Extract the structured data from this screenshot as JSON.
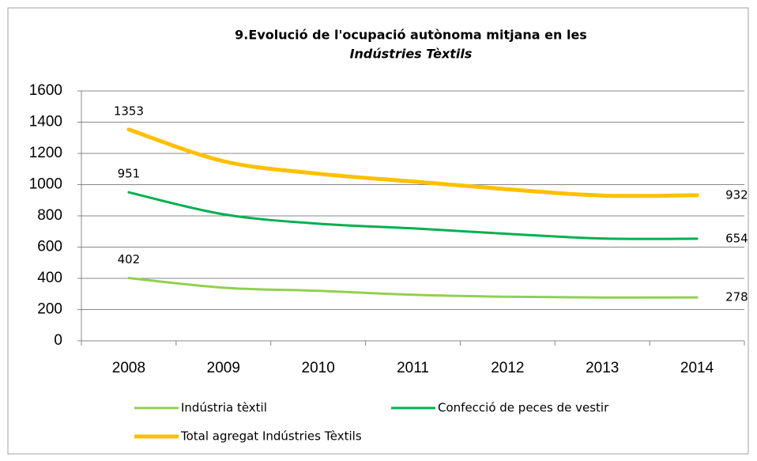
{
  "chart_data": {
    "type": "line",
    "title_lines": [
      "9.Evolució de l'ocupació autònoma mitjana en les",
      "Indústries Tèxtils"
    ],
    "categories": [
      "2008",
      "2009",
      "2010",
      "2011",
      "2012",
      "2013",
      "2014"
    ],
    "series": [
      {
        "name": "Indústria tèxtil",
        "color": "#92d050",
        "values": [
          402,
          340,
          320,
          295,
          282,
          277,
          278
        ]
      },
      {
        "name": "Confecció de peces de vestir",
        "color": "#00b050",
        "values": [
          951,
          810,
          750,
          720,
          685,
          655,
          654
        ]
      },
      {
        "name": "Total agregat Indústries Tèxtils",
        "color": "#ffc000",
        "values": [
          1353,
          1150,
          1070,
          1020,
          970,
          930,
          932
        ]
      }
    ],
    "ylim": [
      0,
      1600
    ],
    "yticks": [
      0,
      200,
      400,
      600,
      800,
      1000,
      1200,
      1400,
      1600
    ],
    "grid": true
  }
}
